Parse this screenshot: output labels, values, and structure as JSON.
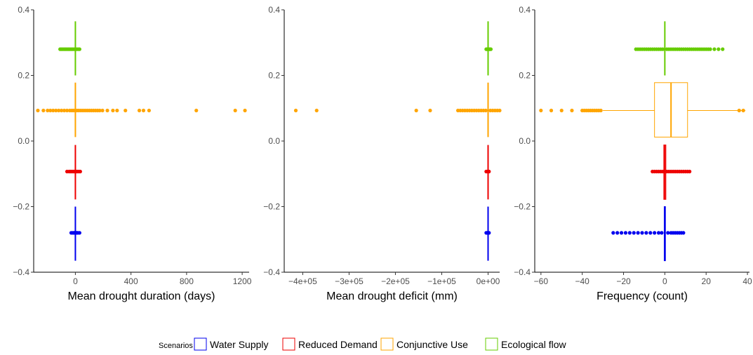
{
  "chart_data": [
    {
      "type": "boxplot",
      "xlabel": "Mean drought duration (days)",
      "xlim": [
        -300,
        1250
      ],
      "ylim": [
        -0.4,
        0.4
      ],
      "x_ticks": [
        0,
        400,
        800,
        1200
      ],
      "x_tick_labels": [
        "0",
        "400",
        "800",
        "1200"
      ],
      "y_ticks": [
        -0.4,
        -0.2,
        0.0,
        0.2,
        0.4
      ],
      "y_tick_labels": [
        "−0.4",
        "−0.2",
        "0.0",
        "0.2",
        "0.4"
      ],
      "series": [
        {
          "name": "Water Supply",
          "y": -0.28,
          "box": [
            0,
            0,
            0,
            0,
            0
          ],
          "whisker_range": [
            -0.365,
            -0.2
          ],
          "outliers": [
            -30,
            -20,
            -12,
            -8,
            -4,
            4,
            8,
            12,
            18,
            30
          ]
        },
        {
          "name": "Reduced Demand",
          "y": -0.093,
          "box": [
            0,
            0,
            0,
            0,
            0
          ],
          "whisker_range": [
            -0.178,
            -0.012
          ],
          "outliers": [
            -60,
            -45,
            -35,
            -25,
            -15,
            -8,
            8,
            15,
            25,
            35
          ]
        },
        {
          "name": "Conjunctive Use",
          "y": 0.093,
          "box": [
            0,
            0,
            0,
            0,
            0
          ],
          "whisker_range": [
            0.012,
            0.178
          ],
          "outliers": [
            -270,
            -230,
            -200,
            -180,
            -160,
            -140,
            -120,
            -100,
            -80,
            -60,
            -40,
            -25,
            -12,
            12,
            25,
            40,
            55,
            70,
            85,
            100,
            115,
            130,
            145,
            160,
            175,
            195,
            230,
            270,
            300,
            360,
            460,
            490,
            530,
            870,
            1150,
            1220
          ]
        },
        {
          "name": "Ecological flow",
          "y": 0.28,
          "box": [
            0,
            0,
            0,
            0,
            0
          ],
          "whisker_range": [
            0.2,
            0.365
          ],
          "outliers": [
            -110,
            -100,
            -90,
            -80,
            -70,
            -60,
            -50,
            -40,
            -30,
            -20,
            -10,
            10,
            20,
            30
          ]
        }
      ]
    },
    {
      "type": "boxplot",
      "xlabel": "Mean drought deficit (mm)",
      "xlim": [
        -440000,
        25000
      ],
      "ylim": [
        -0.4,
        0.4
      ],
      "x_ticks": [
        -400000,
        -300000,
        -200000,
        -100000,
        0
      ],
      "x_tick_labels": [
        "−4e+05",
        "−3e+05",
        "−2e+05",
        "−1e+05",
        "0e+00"
      ],
      "y_ticks": [
        -0.4,
        -0.2,
        0.0,
        0.2,
        0.4
      ],
      "y_tick_labels": [
        "−0.4",
        "−0.2",
        "0.0",
        "0.2",
        "0.4"
      ],
      "series": [
        {
          "name": "Water Supply",
          "y": -0.28,
          "box": [
            0,
            0,
            0,
            0,
            0
          ],
          "whisker_range": [
            -0.365,
            -0.2
          ],
          "outliers": [
            -4000,
            -2000,
            0,
            2000
          ]
        },
        {
          "name": "Reduced Demand",
          "y": -0.093,
          "box": [
            0,
            0,
            0,
            0,
            0
          ],
          "whisker_range": [
            -0.178,
            -0.012
          ],
          "outliers": [
            -4000,
            -2000,
            0,
            2000
          ]
        },
        {
          "name": "Conjunctive Use",
          "y": 0.093,
          "box": [
            0,
            0,
            0,
            0,
            0
          ],
          "whisker_range": [
            0.012,
            0.178
          ],
          "outliers": [
            -415000,
            -370000,
            -155000,
            -125000,
            -65000,
            -60000,
            -55000,
            -50000,
            -45000,
            -40000,
            -35000,
            -30000,
            -25000,
            -20000,
            -15000,
            -10000,
            -5000,
            5000,
            10000,
            15000,
            20000,
            25000
          ]
        },
        {
          "name": "Ecological flow",
          "y": 0.28,
          "box": [
            0,
            0,
            0,
            0,
            0
          ],
          "whisker_range": [
            0.2,
            0.365
          ],
          "outliers": [
            -4000,
            -2000,
            2000,
            4000,
            6000
          ]
        }
      ]
    },
    {
      "type": "boxplot",
      "xlabel": "Frequency (count)",
      "xlim": [
        -63,
        41
      ],
      "ylim": [
        -0.4,
        0.4
      ],
      "x_ticks": [
        -60,
        -40,
        -20,
        0,
        20,
        40
      ],
      "x_tick_labels": [
        "−60",
        "−40",
        "−20",
        "0",
        "20",
        "40"
      ],
      "y_ticks": [
        -0.4,
        -0.2,
        0.0,
        0.2,
        0.4
      ],
      "y_tick_labels": [
        "−0.4",
        "−0.2",
        "0.0",
        "0.2",
        "0.4"
      ],
      "series": [
        {
          "name": "Water Supply",
          "y": -0.28,
          "box": [
            0,
            -0.3,
            0,
            0.3,
            0
          ],
          "whisker_range": [
            -0.365,
            -0.2
          ],
          "outliers": [
            -25,
            -23,
            -21,
            -19,
            -17,
            -15,
            -13,
            -11,
            -9,
            -7,
            -5,
            -3,
            -1.5,
            1.5,
            3,
            4,
            5,
            6,
            7,
            8,
            9
          ]
        },
        {
          "name": "Reduced Demand",
          "y": -0.093,
          "box": [
            -0.5,
            -0.5,
            0,
            0.5,
            0.5
          ],
          "whisker_range": [
            -0.178,
            -0.012
          ],
          "outliers": [
            -6,
            -5,
            -4,
            -3,
            -2,
            -1,
            1,
            2,
            3,
            4,
            5,
            6,
            7,
            8,
            9,
            10,
            11,
            12
          ]
        },
        {
          "name": "Conjunctive Use",
          "y": 0.093,
          "box": [
            -30,
            -5,
            3,
            11,
            39
          ],
          "whisker_range": [
            0.012,
            0.178
          ],
          "outliers": [
            -60,
            -55,
            -50,
            -45,
            -40,
            -39,
            -38,
            -37,
            -36,
            -35,
            -34,
            -33,
            -32,
            -31,
            36,
            38
          ]
        },
        {
          "name": "Ecological flow",
          "y": 0.28,
          "box": [
            0,
            0,
            0,
            0,
            0
          ],
          "whisker_range": [
            0.2,
            0.365
          ],
          "outliers": [
            -14,
            -13,
            -12,
            -11,
            -10,
            -9,
            -8,
            -7,
            -6,
            -5,
            -4,
            -3,
            -2,
            -1,
            1,
            2,
            3,
            4,
            5,
            6,
            7,
            8,
            9,
            10,
            11,
            12,
            13,
            14,
            15,
            16,
            17,
            18,
            19,
            20,
            21,
            22,
            24,
            26,
            28
          ]
        }
      ]
    }
  ],
  "legend": {
    "title": "Scenarios",
    "items": [
      {
        "label": "Water Supply",
        "color": "#0000ee"
      },
      {
        "label": "Reduced Demand",
        "color": "#ee0000"
      },
      {
        "label": "Conjunctive Use",
        "color": "#ffa500"
      },
      {
        "label": "Ecological flow",
        "color": "#66cc00"
      }
    ]
  }
}
